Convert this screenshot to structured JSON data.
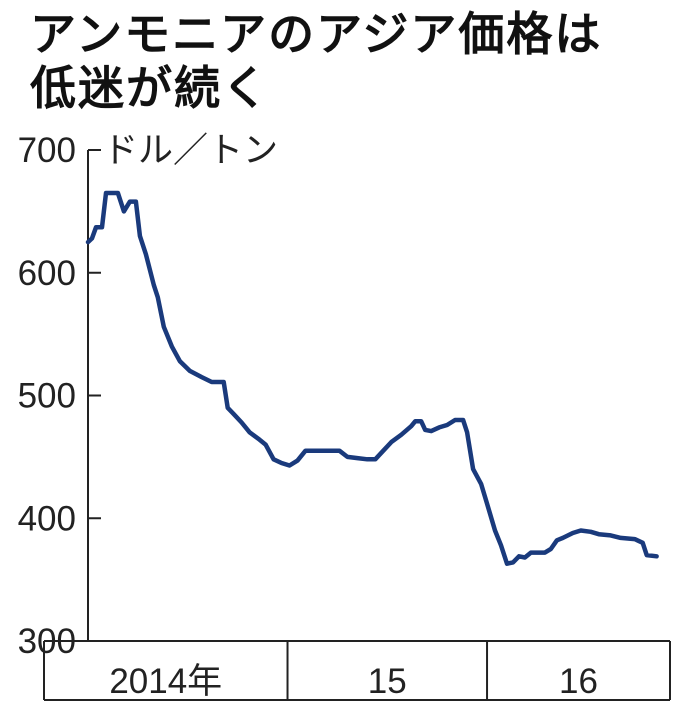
{
  "title_lines": [
    "アンモニアのアジア価格は",
    "低迷が続く"
  ],
  "unit": "ドル／トン",
  "chart_data": {
    "type": "line",
    "title": "アンモニアのアジア価格は低迷が続く",
    "ylabel": "ドル／トン",
    "ylim": [
      300,
      700
    ],
    "yticks": [
      300,
      400,
      500,
      600,
      700
    ],
    "x_range": [
      2014.0,
      2016.917
    ],
    "year_boundaries": [
      2014.0,
      2015.0,
      2016.0
    ],
    "xtick_labels": [
      {
        "label": "2014年",
        "start": 2014.0,
        "end": 2015.0
      },
      {
        "label": "15",
        "start": 2015.0,
        "end": 2016.0
      },
      {
        "label": "16",
        "start": 2016.0,
        "end": 2016.917
      }
    ],
    "grid": false,
    "series": [
      {
        "color": "#1a3a7c",
        "points": [
          [
            2014.0,
            625
          ],
          [
            2014.02,
            628
          ],
          [
            2014.04,
            637
          ],
          [
            2014.07,
            637
          ],
          [
            2014.09,
            665
          ],
          [
            2014.15,
            665
          ],
          [
            2014.18,
            650
          ],
          [
            2014.21,
            658
          ],
          [
            2014.24,
            658
          ],
          [
            2014.26,
            630
          ],
          [
            2014.29,
            615
          ],
          [
            2014.33,
            590
          ],
          [
            2014.35,
            580
          ],
          [
            2014.38,
            556
          ],
          [
            2014.42,
            540
          ],
          [
            2014.46,
            528
          ],
          [
            2014.51,
            520
          ],
          [
            2014.57,
            515
          ],
          [
            2014.62,
            511
          ],
          [
            2014.68,
            511
          ],
          [
            2014.7,
            490
          ],
          [
            2014.73,
            485
          ],
          [
            2014.77,
            478
          ],
          [
            2014.81,
            470
          ],
          [
            2014.86,
            464
          ],
          [
            2014.89,
            460
          ],
          [
            2014.93,
            448
          ],
          [
            2014.97,
            445
          ],
          [
            2015.01,
            443
          ],
          [
            2015.05,
            447
          ],
          [
            2015.09,
            455
          ],
          [
            2015.16,
            455
          ],
          [
            2015.21,
            455
          ],
          [
            2015.26,
            455
          ],
          [
            2015.3,
            450
          ],
          [
            2015.35,
            449
          ],
          [
            2015.4,
            448
          ],
          [
            2015.44,
            448
          ],
          [
            2015.48,
            455
          ],
          [
            2015.52,
            462
          ],
          [
            2015.57,
            468
          ],
          [
            2015.62,
            475
          ],
          [
            2015.64,
            479
          ],
          [
            2015.67,
            479
          ],
          [
            2015.69,
            472
          ],
          [
            2015.72,
            471
          ],
          [
            2015.76,
            474
          ],
          [
            2015.8,
            476
          ],
          [
            2015.84,
            480
          ],
          [
            2015.88,
            480
          ],
          [
            2015.9,
            470
          ],
          [
            2015.93,
            440
          ],
          [
            2015.97,
            428
          ],
          [
            2016.0,
            412
          ],
          [
            2016.04,
            390
          ],
          [
            2016.07,
            378
          ],
          [
            2016.1,
            363
          ],
          [
            2016.13,
            364
          ],
          [
            2016.16,
            369
          ],
          [
            2016.19,
            368
          ],
          [
            2016.22,
            372
          ],
          [
            2016.29,
            372
          ],
          [
            2016.32,
            375
          ],
          [
            2016.35,
            382
          ],
          [
            2016.38,
            384
          ],
          [
            2016.43,
            388
          ],
          [
            2016.47,
            390
          ],
          [
            2016.52,
            389
          ],
          [
            2016.56,
            387
          ],
          [
            2016.62,
            386
          ],
          [
            2016.67,
            384
          ],
          [
            2016.74,
            383
          ],
          [
            2016.78,
            380
          ],
          [
            2016.8,
            370
          ],
          [
            2016.85,
            369
          ]
        ]
      }
    ]
  }
}
